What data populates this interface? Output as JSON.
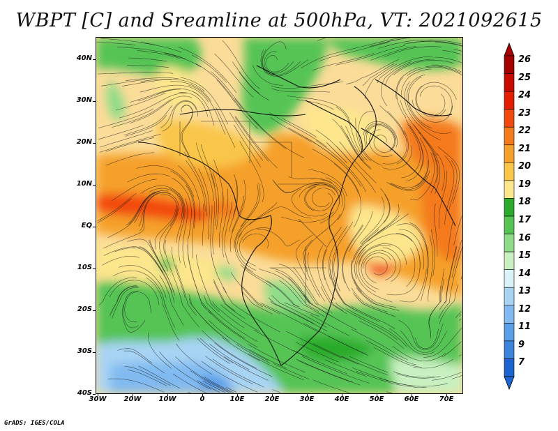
{
  "title": "WBPT [C] and Sreamline at 500hPa, VT: 2021092615",
  "credit": "GrADS: IGES/COLA",
  "map": {
    "lat_labels": [
      "40N",
      "30N",
      "20N",
      "10N",
      "EQ",
      "10S",
      "20S",
      "30S",
      "40S"
    ],
    "lon_labels": [
      "30W",
      "20W",
      "10W",
      "0",
      "10E",
      "20E",
      "30E",
      "40E",
      "50E",
      "60E",
      "70E"
    ],
    "extent": {
      "lon": [
        -30,
        75
      ],
      "lat": [
        -40,
        45
      ]
    },
    "variable": "Wet-bulb potential temperature",
    "level": "500hPa",
    "overlay": "streamlines"
  },
  "colorbar": {
    "labels": [
      "26",
      "25",
      "24",
      "23",
      "22",
      "21",
      "20",
      "19",
      "18",
      "17",
      "16",
      "15",
      "14",
      "13",
      "12",
      "11",
      "9",
      "7"
    ],
    "colors": [
      "#a50000",
      "#c80a00",
      "#e41e00",
      "#f24a0e",
      "#f47a1c",
      "#f5a02a",
      "#f9c648",
      "#fde68c",
      "#2cab2c",
      "#55c455",
      "#8edc88",
      "#c8f0c0",
      "#d8f4fa",
      "#a8d4f4",
      "#80baf0",
      "#5c9ee8",
      "#3c84dc",
      "#1c64d0"
    ]
  }
}
